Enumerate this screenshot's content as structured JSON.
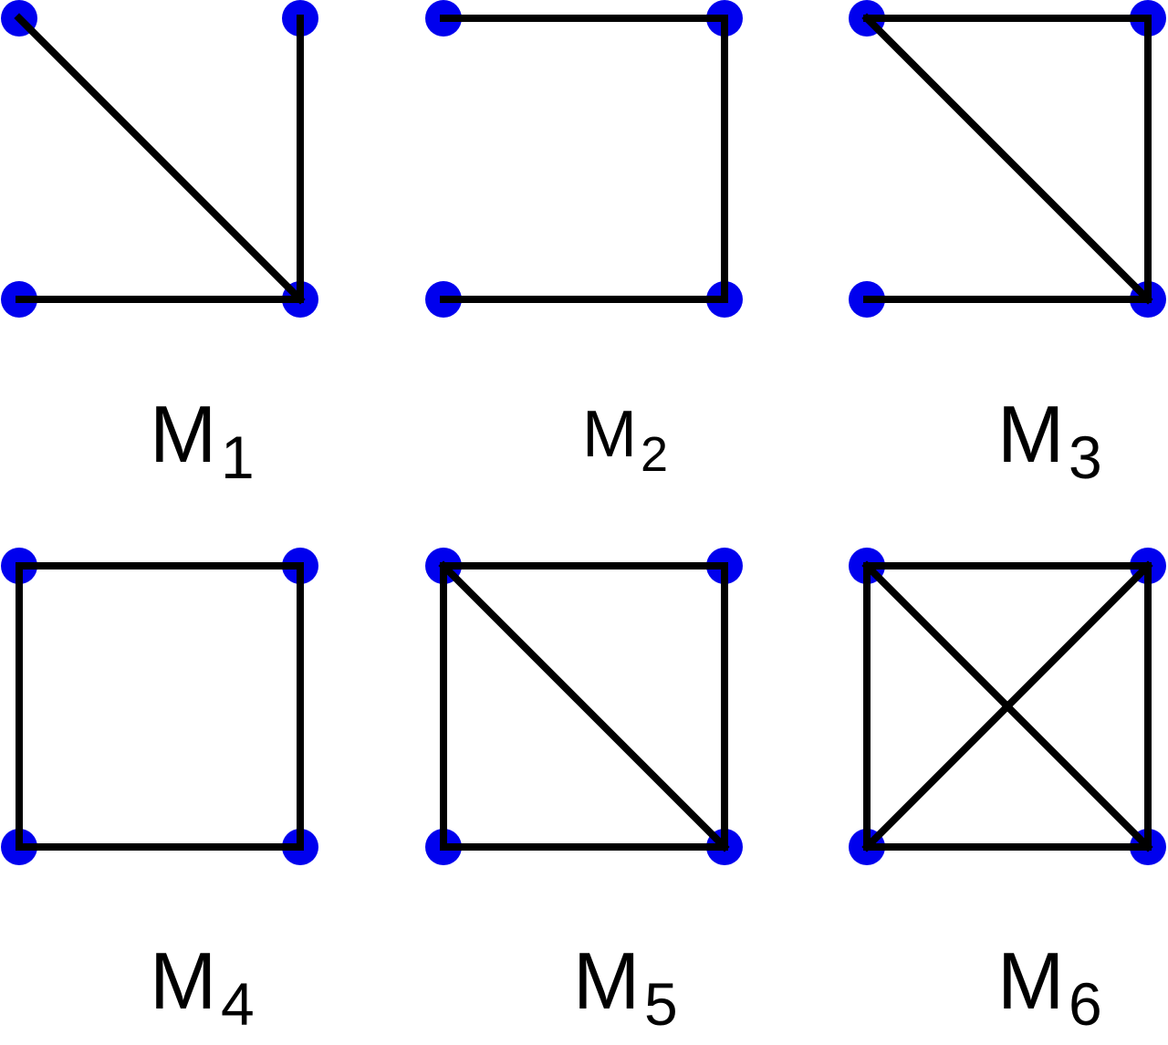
{
  "colors": {
    "node": "#0000ee",
    "edge": "#000000",
    "background": "#ffffff"
  },
  "motifs": [
    {
      "id": "m1",
      "label": {
        "base": "M",
        "sub": "1"
      },
      "edges": [
        [
          "top-left",
          "bottom-right"
        ],
        [
          "top-right",
          "bottom-right"
        ],
        [
          "bottom-left",
          "bottom-right"
        ]
      ]
    },
    {
      "id": "m2",
      "label": {
        "base": "M",
        "sub": "2"
      },
      "edges": [
        [
          "top-left",
          "top-right"
        ],
        [
          "top-right",
          "bottom-right"
        ],
        [
          "bottom-left",
          "bottom-right"
        ]
      ]
    },
    {
      "id": "m3",
      "label": {
        "base": "M",
        "sub": "3"
      },
      "edges": [
        [
          "top-left",
          "top-right"
        ],
        [
          "top-right",
          "bottom-right"
        ],
        [
          "top-left",
          "bottom-right"
        ],
        [
          "bottom-left",
          "bottom-right"
        ]
      ]
    },
    {
      "id": "m4",
      "label": {
        "base": "M",
        "sub": "4"
      },
      "edges": [
        [
          "top-left",
          "top-right"
        ],
        [
          "top-right",
          "bottom-right"
        ],
        [
          "bottom-right",
          "bottom-left"
        ],
        [
          "bottom-left",
          "top-left"
        ]
      ]
    },
    {
      "id": "m5",
      "label": {
        "base": "M",
        "sub": "5"
      },
      "edges": [
        [
          "top-left",
          "top-right"
        ],
        [
          "top-right",
          "bottom-right"
        ],
        [
          "bottom-right",
          "bottom-left"
        ],
        [
          "bottom-left",
          "top-left"
        ],
        [
          "top-left",
          "bottom-right"
        ]
      ]
    },
    {
      "id": "m6",
      "label": {
        "base": "M",
        "sub": "6"
      },
      "edges": [
        [
          "top-left",
          "top-right"
        ],
        [
          "top-right",
          "bottom-right"
        ],
        [
          "bottom-right",
          "bottom-left"
        ],
        [
          "bottom-left",
          "top-left"
        ],
        [
          "top-left",
          "bottom-right"
        ],
        [
          "top-right",
          "bottom-left"
        ]
      ]
    }
  ]
}
